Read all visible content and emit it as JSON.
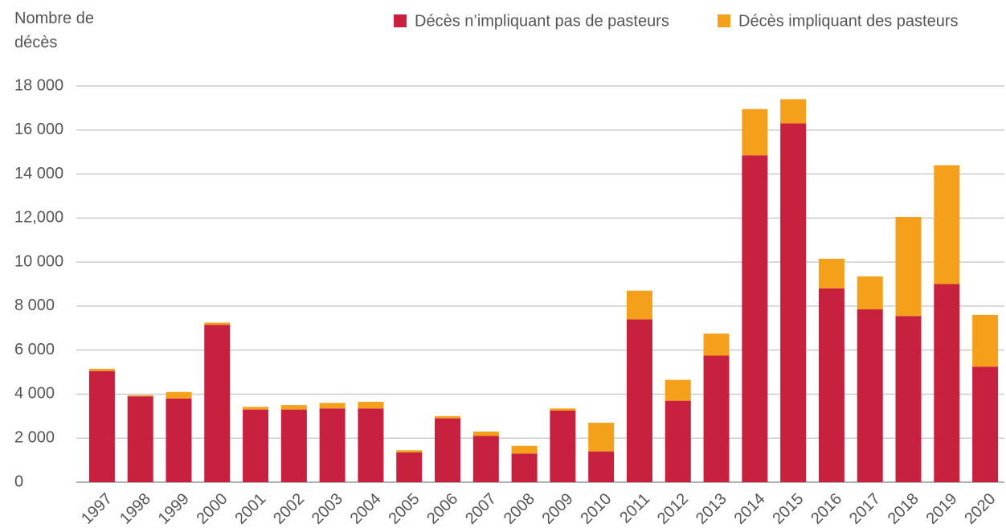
{
  "chart_data": {
    "type": "stacked_bar",
    "y_label": "Nombre de décès",
    "categories": [
      "1997",
      "1998",
      "1999",
      "2000",
      "2001",
      "2002",
      "2003",
      "2004",
      "2005",
      "2006",
      "2007",
      "2008",
      "2009",
      "2010",
      "2011",
      "2012",
      "2013",
      "2014",
      "2015",
      "2016",
      "2017",
      "2018",
      "2019",
      "2020"
    ],
    "series": [
      {
        "name": "Décès n’impliquant pas de pasteurs",
        "color": "#c8203f",
        "values": [
          5050,
          3900,
          3800,
          7150,
          3300,
          3300,
          3350,
          3350,
          1350,
          2900,
          2100,
          1300,
          3250,
          1400,
          7400,
          3700,
          5750,
          14850,
          16300,
          8800,
          7850,
          7550,
          9000,
          5250
        ]
      },
      {
        "name": "Décès impliquant des pasteurs",
        "color": "#f5a01a",
        "values": [
          100,
          50,
          300,
          100,
          120,
          200,
          250,
          300,
          100,
          100,
          200,
          350,
          100,
          1300,
          1300,
          950,
          1000,
          2100,
          1100,
          1350,
          1500,
          4500,
          5400,
          2350
        ]
      }
    ],
    "ylim": [
      0,
      18000
    ],
    "yticks": [
      0,
      {
        "value": 2000,
        "label": "2 000"
      },
      {
        "value": 4000,
        "label": "4 000"
      },
      {
        "value": 6000,
        "label": "6 000"
      },
      {
        "value": 8000,
        "label": "8 000"
      },
      {
        "value": 10000,
        "label": "10 000"
      },
      {
        "value": 12000,
        "label": "12,000"
      },
      {
        "value": 14000,
        "label": "14 000"
      },
      {
        "value": 16000,
        "label": "16 000"
      },
      {
        "value": 18000,
        "label": "18 000"
      }
    ],
    "grid": true,
    "legend": "top-right"
  }
}
